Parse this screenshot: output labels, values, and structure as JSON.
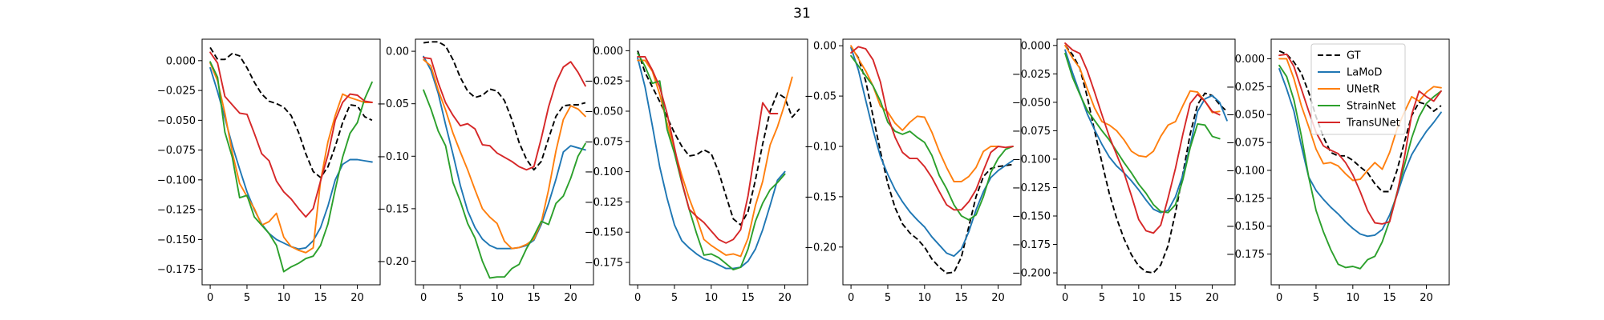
{
  "figure": {
    "title": "31"
  },
  "legend": {
    "placement": "upper-left",
    "entries": [
      {
        "name": "GT",
        "color": "#000000",
        "dashed": true
      },
      {
        "name": "LaMoD",
        "color": "#1f77b4",
        "dashed": false
      },
      {
        "name": "UNetR",
        "color": "#ff7f0e",
        "dashed": false
      },
      {
        "name": "StrainNet",
        "color": "#2ca02c",
        "dashed": false
      },
      {
        "name": "TransUNet",
        "color": "#d62728",
        "dashed": false
      }
    ]
  },
  "chart_data": [
    {
      "type": "line",
      "xlim": [
        -1.1,
        23.1
      ],
      "ylim": [
        -0.188,
        0.018
      ],
      "xticks": [
        0,
        5,
        10,
        15,
        20
      ],
      "yticks": [
        0.0,
        -0.025,
        -0.05,
        -0.075,
        -0.1,
        -0.125,
        -0.15,
        -0.175
      ],
      "ytick_labels": [
        "0.000",
        "−0.025",
        "−0.050",
        "−0.075",
        "−0.100",
        "−0.125",
        "−0.150",
        "−0.175"
      ],
      "series": [
        {
          "name": "GT",
          "values": [
            0.011,
            0.001,
            0.001,
            0.006,
            0.004,
            -0.006,
            -0.018,
            -0.028,
            -0.034,
            -0.036,
            -0.039,
            -0.046,
            -0.06,
            -0.078,
            -0.093,
            -0.098,
            -0.089,
            -0.072,
            -0.052,
            -0.037,
            -0.038,
            -0.047,
            -0.05
          ]
        },
        {
          "name": "LaMoD",
          "values": [
            -0.006,
            -0.026,
            -0.048,
            -0.071,
            -0.091,
            -0.11,
            -0.125,
            -0.137,
            -0.145,
            -0.15,
            -0.153,
            -0.156,
            -0.158,
            -0.157,
            -0.151,
            -0.14,
            -0.122,
            -0.1,
            -0.087,
            -0.083,
            -0.083,
            -0.084,
            -0.085
          ]
        },
        {
          "name": "UNetR",
          "values": [
            -0.002,
            -0.017,
            -0.044,
            -0.077,
            -0.103,
            -0.114,
            -0.124,
            -0.138,
            -0.135,
            -0.128,
            -0.148,
            -0.156,
            -0.159,
            -0.161,
            -0.157,
            -0.101,
            -0.068,
            -0.046,
            -0.028,
            -0.031,
            -0.033,
            -0.035,
            -0.035
          ]
        },
        {
          "name": "StrainNet",
          "values": [
            -0.001,
            -0.014,
            -0.06,
            -0.081,
            -0.115,
            -0.113,
            -0.131,
            -0.138,
            -0.145,
            -0.155,
            -0.177,
            -0.173,
            -0.17,
            -0.166,
            -0.164,
            -0.155,
            -0.137,
            -0.108,
            -0.081,
            -0.061,
            -0.052,
            -0.032,
            -0.018
          ]
        },
        {
          "name": "TransUNet",
          "values": [
            0.007,
            -0.002,
            -0.03,
            -0.037,
            -0.044,
            -0.045,
            -0.061,
            -0.078,
            -0.084,
            -0.101,
            -0.11,
            -0.116,
            -0.124,
            -0.131,
            -0.124,
            -0.101,
            -0.079,
            -0.05,
            -0.035,
            -0.028,
            -0.029,
            -0.034,
            -0.035
          ]
        }
      ]
    },
    {
      "type": "line",
      "xlim": [
        -1.1,
        23.1
      ],
      "ylim": [
        -0.2225,
        0.0115
      ],
      "xticks": [
        0,
        5,
        10,
        15,
        20
      ],
      "yticks": [
        0.0,
        -0.05,
        -0.1,
        -0.15,
        -0.2
      ],
      "ytick_labels": [
        "0.00",
        "−0.05",
        "−0.10",
        "−0.15",
        "−0.20"
      ],
      "series": [
        {
          "name": "GT",
          "values": [
            0.008,
            0.009,
            0.009,
            0.005,
            -0.008,
            -0.025,
            -0.038,
            -0.044,
            -0.042,
            -0.036,
            -0.038,
            -0.047,
            -0.065,
            -0.087,
            -0.103,
            -0.113,
            -0.105,
            -0.083,
            -0.062,
            -0.052,
            -0.051,
            -0.051,
            -0.049
          ]
        },
        {
          "name": "LaMoD",
          "values": [
            -0.005,
            -0.018,
            -0.04,
            -0.07,
            -0.098,
            -0.128,
            -0.152,
            -0.168,
            -0.179,
            -0.185,
            -0.188,
            -0.188,
            -0.188,
            -0.187,
            -0.185,
            -0.18,
            -0.165,
            -0.145,
            -0.122,
            -0.096,
            -0.09,
            -0.092,
            -0.094
          ]
        },
        {
          "name": "UNetR",
          "values": [
            -0.008,
            -0.014,
            -0.037,
            -0.056,
            -0.078,
            -0.096,
            -0.113,
            -0.132,
            -0.15,
            -0.158,
            -0.164,
            -0.181,
            -0.188,
            -0.187,
            -0.184,
            -0.179,
            -0.163,
            -0.132,
            -0.095,
            -0.065,
            -0.052,
            -0.055,
            -0.062
          ]
        },
        {
          "name": "StrainNet",
          "values": [
            -0.037,
            -0.055,
            -0.076,
            -0.09,
            -0.125,
            -0.143,
            -0.164,
            -0.178,
            -0.2,
            -0.216,
            -0.215,
            -0.215,
            -0.207,
            -0.203,
            -0.188,
            -0.176,
            -0.162,
            -0.165,
            -0.145,
            -0.138,
            -0.121,
            -0.1,
            -0.088
          ]
        },
        {
          "name": "TransUNet",
          "values": [
            -0.006,
            -0.007,
            -0.03,
            -0.049,
            -0.061,
            -0.071,
            -0.069,
            -0.074,
            -0.089,
            -0.09,
            -0.097,
            -0.101,
            -0.105,
            -0.11,
            -0.113,
            -0.11,
            -0.083,
            -0.053,
            -0.03,
            -0.015,
            -0.01,
            -0.02,
            -0.033
          ]
        }
      ]
    },
    {
      "type": "line",
      "xlim": [
        -1.1,
        23.1
      ],
      "ylim": [
        -0.1935,
        0.0095
      ],
      "xticks": [
        0,
        5,
        10,
        15,
        20
      ],
      "yticks": [
        0.0,
        -0.025,
        -0.05,
        -0.075,
        -0.1,
        -0.125,
        -0.15,
        -0.175
      ],
      "ytick_labels": [
        "0.000",
        "−0.025",
        "−0.050",
        "−0.075",
        "−0.100",
        "−0.125",
        "−0.150",
        "−0.175"
      ],
      "series": [
        {
          "name": "GT",
          "values": [
            0.0,
            -0.018,
            -0.03,
            -0.042,
            -0.055,
            -0.068,
            -0.079,
            -0.087,
            -0.086,
            -0.082,
            -0.085,
            -0.1,
            -0.12,
            -0.139,
            -0.144,
            -0.133,
            -0.107,
            -0.077,
            -0.05,
            -0.035,
            -0.039,
            -0.055,
            -0.048
          ]
        },
        {
          "name": "LaMoD",
          "values": [
            -0.006,
            -0.03,
            -0.062,
            -0.096,
            -0.122,
            -0.144,
            -0.157,
            -0.163,
            -0.168,
            -0.172,
            -0.174,
            -0.177,
            -0.18,
            -0.18,
            -0.179,
            -0.174,
            -0.164,
            -0.148,
            -0.128,
            -0.107,
            -0.1
          ]
        },
        {
          "name": "UNetR",
          "values": [
            -0.008,
            -0.008,
            -0.017,
            -0.036,
            -0.06,
            -0.082,
            -0.103,
            -0.122,
            -0.138,
            -0.156,
            -0.161,
            -0.165,
            -0.169,
            -0.168,
            -0.17,
            -0.155,
            -0.128,
            -0.108,
            -0.078,
            -0.063,
            -0.044,
            -0.022
          ]
        },
        {
          "name": "StrainNet",
          "values": [
            -0.002,
            -0.013,
            -0.027,
            -0.025,
            -0.065,
            -0.085,
            -0.109,
            -0.131,
            -0.151,
            -0.169,
            -0.168,
            -0.171,
            -0.176,
            -0.181,
            -0.179,
            -0.164,
            -0.141,
            -0.126,
            -0.115,
            -0.109,
            -0.102
          ]
        },
        {
          "name": "TransUNet",
          "values": [
            -0.005,
            -0.005,
            -0.016,
            -0.03,
            -0.052,
            -0.08,
            -0.108,
            -0.131,
            -0.137,
            -0.142,
            -0.149,
            -0.156,
            -0.159,
            -0.156,
            -0.148,
            -0.12,
            -0.081,
            -0.043,
            -0.052,
            -0.052
          ]
        }
      ]
    },
    {
      "type": "line",
      "xlim": [
        -1.1,
        23.1
      ],
      "ylim": [
        -0.2375,
        0.0065
      ],
      "xticks": [
        0,
        5,
        10,
        15,
        20
      ],
      "yticks": [
        0.0,
        -0.05,
        -0.1,
        -0.15,
        -0.2
      ],
      "ytick_labels": [
        "0.00",
        "−0.05",
        "−0.10",
        "−0.15",
        "−0.20"
      ],
      "series": [
        {
          "name": "GT",
          "values": [
            -0.001,
            -0.012,
            -0.035,
            -0.07,
            -0.105,
            -0.137,
            -0.161,
            -0.177,
            -0.186,
            -0.192,
            -0.2,
            -0.212,
            -0.22,
            -0.226,
            -0.225,
            -0.21,
            -0.18,
            -0.15,
            -0.13,
            -0.122,
            -0.12,
            -0.119,
            -0.118
          ]
        },
        {
          "name": "LaMoD",
          "values": [
            -0.002,
            -0.024,
            -0.054,
            -0.084,
            -0.11,
            -0.128,
            -0.143,
            -0.155,
            -0.165,
            -0.173,
            -0.18,
            -0.19,
            -0.198,
            -0.206,
            -0.209,
            -0.202,
            -0.185,
            -0.163,
            -0.145,
            -0.131,
            -0.124,
            -0.119,
            -0.114
          ]
        },
        {
          "name": "UNetR",
          "values": [
            0.0,
            -0.013,
            -0.025,
            -0.04,
            -0.06,
            -0.066,
            -0.077,
            -0.084,
            -0.076,
            -0.07,
            -0.071,
            -0.086,
            -0.105,
            -0.121,
            -0.135,
            -0.135,
            -0.13,
            -0.121,
            -0.105,
            -0.1,
            -0.1
          ]
        },
        {
          "name": "StrainNet",
          "values": [
            -0.01,
            -0.02,
            -0.03,
            -0.04,
            -0.055,
            -0.076,
            -0.085,
            -0.088,
            -0.085,
            -0.091,
            -0.096,
            -0.109,
            -0.129,
            -0.142,
            -0.158,
            -0.169,
            -0.173,
            -0.168,
            -0.15,
            -0.126,
            -0.112,
            -0.103,
            -0.1
          ]
        },
        {
          "name": "TransUNet",
          "values": [
            -0.007,
            -0.001,
            -0.003,
            -0.014,
            -0.036,
            -0.07,
            -0.091,
            -0.106,
            -0.112,
            -0.112,
            -0.12,
            -0.131,
            -0.145,
            -0.158,
            -0.163,
            -0.163,
            -0.155,
            -0.143,
            -0.124,
            -0.106,
            -0.1,
            -0.101,
            -0.1
          ]
        }
      ]
    },
    {
      "type": "line",
      "xlim": [
        -1.1,
        23.1
      ],
      "ylim": [
        -0.2105,
        0.0055
      ],
      "xticks": [
        0,
        5,
        10,
        15,
        20
      ],
      "yticks": [
        0.0,
        -0.025,
        -0.05,
        -0.075,
        -0.1,
        -0.125,
        -0.15,
        -0.175,
        -0.2
      ],
      "ytick_labels": [
        "0.000",
        "−0.025",
        "−0.050",
        "−0.075",
        "−0.100",
        "−0.125",
        "−0.150",
        "−0.175",
        "−0.200"
      ],
      "series": [
        {
          "name": "GT",
          "values": [
            0.0,
            -0.008,
            -0.02,
            -0.045,
            -0.075,
            -0.103,
            -0.13,
            -0.152,
            -0.17,
            -0.184,
            -0.194,
            -0.199,
            -0.2,
            -0.193,
            -0.176,
            -0.147,
            -0.113,
            -0.078,
            -0.052,
            -0.042,
            -0.044,
            -0.052,
            -0.058
          ]
        },
        {
          "name": "LaMoD",
          "values": [
            -0.004,
            -0.024,
            -0.042,
            -0.06,
            -0.074,
            -0.087,
            -0.098,
            -0.106,
            -0.112,
            -0.119,
            -0.127,
            -0.136,
            -0.144,
            -0.147,
            -0.145,
            -0.133,
            -0.114,
            -0.088,
            -0.058,
            -0.047,
            -0.044,
            -0.05,
            -0.066
          ]
        },
        {
          "name": "UNetR",
          "values": [
            0.0,
            -0.011,
            -0.02,
            -0.038,
            -0.055,
            -0.067,
            -0.07,
            -0.075,
            -0.083,
            -0.093,
            -0.097,
            -0.098,
            -0.093,
            -0.08,
            -0.07,
            -0.067,
            -0.053,
            -0.04,
            -0.041,
            -0.049,
            -0.059,
            -0.058
          ]
        },
        {
          "name": "StrainNet",
          "values": [
            -0.007,
            -0.028,
            -0.043,
            -0.057,
            -0.066,
            -0.075,
            -0.083,
            -0.093,
            -0.103,
            -0.112,
            -0.122,
            -0.13,
            -0.14,
            -0.146,
            -0.147,
            -0.14,
            -0.118,
            -0.09,
            -0.069,
            -0.07,
            -0.08,
            -0.082
          ]
        },
        {
          "name": "TransUNet",
          "values": [
            0.002,
            -0.004,
            -0.007,
            -0.022,
            -0.041,
            -0.061,
            -0.08,
            -0.096,
            -0.112,
            -0.132,
            -0.153,
            -0.163,
            -0.165,
            -0.158,
            -0.134,
            -0.108,
            -0.078,
            -0.051,
            -0.043,
            -0.049,
            -0.058,
            -0.061
          ]
        }
      ]
    },
    {
      "type": "line",
      "xlim": [
        -1.1,
        23.1
      ],
      "ylim": [
        -0.2025,
        0.0175
      ],
      "xticks": [
        0,
        5,
        10,
        15,
        20
      ],
      "yticks": [
        0.0,
        -0.025,
        -0.05,
        -0.075,
        -0.1,
        -0.125,
        -0.15,
        -0.175
      ],
      "ytick_labels": [
        "0.000",
        "−0.025",
        "−0.050",
        "−0.075",
        "−0.100",
        "−0.125",
        "−0.150",
        "−0.175"
      ],
      "series": [
        {
          "name": "GT",
          "values": [
            0.007,
            0.004,
            -0.003,
            -0.013,
            -0.03,
            -0.052,
            -0.07,
            -0.084,
            -0.087,
            -0.087,
            -0.091,
            -0.097,
            -0.102,
            -0.112,
            -0.119,
            -0.119,
            -0.1,
            -0.075,
            -0.051,
            -0.039,
            -0.041,
            -0.047,
            -0.042
          ]
        },
        {
          "name": "LaMoD",
          "values": [
            -0.009,
            -0.027,
            -0.047,
            -0.078,
            -0.106,
            -0.118,
            -0.126,
            -0.133,
            -0.139,
            -0.146,
            -0.152,
            -0.157,
            -0.159,
            -0.158,
            -0.153,
            -0.14,
            -0.122,
            -0.102,
            -0.086,
            -0.075,
            -0.065,
            -0.057,
            -0.048
          ]
        },
        {
          "name": "UNetR",
          "values": [
            0.0,
            0.0,
            -0.018,
            -0.042,
            -0.061,
            -0.081,
            -0.094,
            -0.093,
            -0.096,
            -0.103,
            -0.109,
            -0.108,
            -0.1,
            -0.093,
            -0.099,
            -0.084,
            -0.063,
            -0.048,
            -0.034,
            -0.038,
            -0.03,
            -0.025,
            -0.026
          ]
        },
        {
          "name": "StrainNet",
          "values": [
            -0.006,
            -0.016,
            -0.037,
            -0.069,
            -0.106,
            -0.136,
            -0.155,
            -0.171,
            -0.184,
            -0.187,
            -0.186,
            -0.188,
            -0.18,
            -0.177,
            -0.164,
            -0.145,
            -0.12,
            -0.096,
            -0.071,
            -0.052,
            -0.04,
            -0.034,
            -0.029
          ]
        },
        {
          "name": "TransUNet",
          "values": [
            0.003,
            0.004,
            -0.007,
            -0.027,
            -0.047,
            -0.066,
            -0.078,
            -0.082,
            -0.085,
            -0.093,
            -0.104,
            -0.119,
            -0.136,
            -0.147,
            -0.148,
            -0.146,
            -0.121,
            -0.089,
            -0.05,
            -0.029,
            -0.034,
            -0.038,
            -0.029
          ]
        }
      ]
    }
  ]
}
